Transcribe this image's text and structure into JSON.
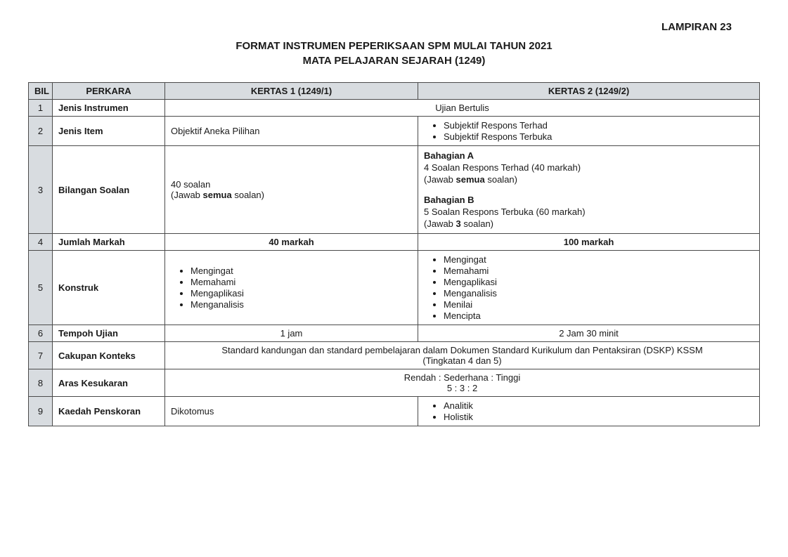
{
  "appendix": "LAMPIRAN 23",
  "title1": "FORMAT INSTRUMEN PEPERIKSAAN SPM MULAI TAHUN 2021",
  "title2": "MATA PELAJARAN SEJARAH (1249)",
  "head": {
    "bil": "BIL",
    "perkara": "PERKARA",
    "k1": "KERTAS 1 (1249/1)",
    "k2": "KERTAS 2 (1249/2)"
  },
  "rows": {
    "r1": {
      "bil": "1",
      "perkara": "Jenis Instrumen",
      "merged": "Ujian Bertulis"
    },
    "r2": {
      "bil": "2",
      "perkara": "Jenis Item",
      "k1": "Objektif Aneka Pilihan",
      "k2_b1": "Subjektif Respons Terhad",
      "k2_b2": "Subjektif Respons Terbuka"
    },
    "r3": {
      "bil": "3",
      "perkara": "Bilangan Soalan",
      "k1_l1": "40 soalan",
      "k1_l2a": "(Jawab ",
      "k1_l2b": "semua",
      "k1_l2c": " soalan)",
      "k2_ah": "Bahagian A",
      "k2_a1": "4 Soalan Respons Terhad (40 markah)",
      "k2_a2a": "(Jawab ",
      "k2_a2b": "semua",
      "k2_a2c": " soalan)",
      "k2_bh": "Bahagian B",
      "k2_b1": "5 Soalan Respons Terbuka (60 markah)",
      "k2_b2a": "(Jawab ",
      "k2_b2b": "3",
      "k2_b2c": " soalan)"
    },
    "r4": {
      "bil": "4",
      "perkara": "Jumlah Markah",
      "k1": "40 markah",
      "k2": "100 markah"
    },
    "r5": {
      "bil": "5",
      "perkara": "Konstruk",
      "k1_1": "Mengingat",
      "k1_2": "Memahami",
      "k1_3": "Mengaplikasi",
      "k1_4": "Menganalisis",
      "k2_1": "Mengingat",
      "k2_2": "Memahami",
      "k2_3": "Mengaplikasi",
      "k2_4": "Menganalisis",
      "k2_5": "Menilai",
      "k2_6": "Mencipta"
    },
    "r6": {
      "bil": "6",
      "perkara": "Tempoh Ujian",
      "k1": "1 jam",
      "k2": "2 Jam 30 minit"
    },
    "r7": {
      "bil": "7",
      "perkara": "Cakupan Konteks",
      "m1": "Standard kandungan dan standard pembelajaran dalam Dokumen Standard Kurikulum dan Pentaksiran (DSKP) KSSM",
      "m2": "(Tingkatan 4 dan 5)"
    },
    "r8": {
      "bil": "8",
      "perkara": "Aras Kesukaran",
      "m1": "Rendah : Sederhana : Tinggi",
      "m2": "5 : 3 : 2"
    },
    "r9": {
      "bil": "9",
      "perkara": "Kaedah Penskoran",
      "k1": "Dikotomus",
      "k2_1": "Analitik",
      "k2_2": "Holistik"
    }
  }
}
